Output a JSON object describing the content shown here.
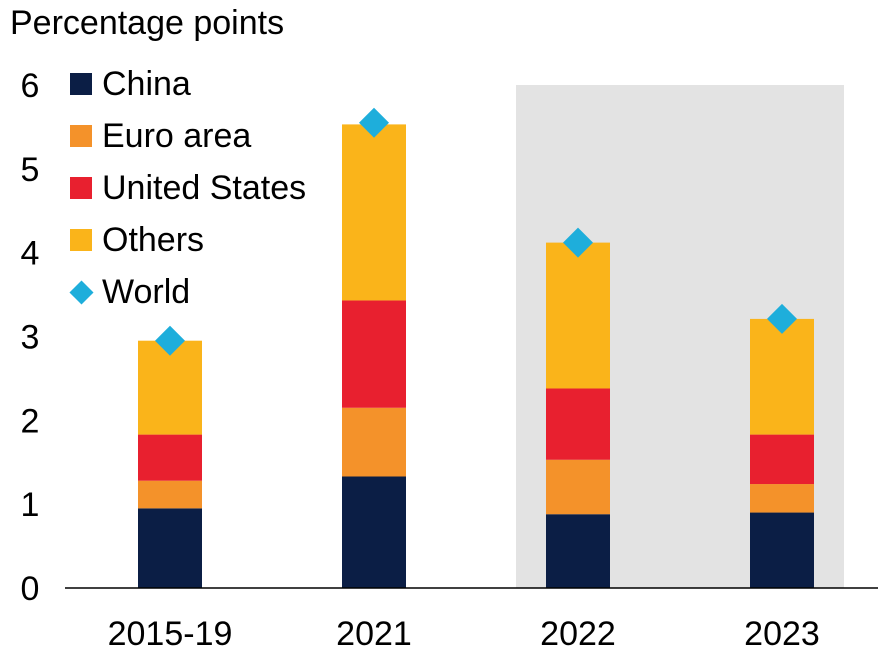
{
  "chart_data": {
    "type": "bar",
    "stacked": true,
    "ylabel": "Percentage points",
    "ylim": [
      0,
      6
    ],
    "yticks": [
      0,
      1,
      2,
      3,
      4,
      5,
      6
    ],
    "categories": [
      "2015-19",
      "2021",
      "2022",
      "2023"
    ],
    "shaded_categories": [
      "2022",
      "2023"
    ],
    "series": [
      {
        "name": "China",
        "color": "#0b1e45",
        "values": [
          0.95,
          1.33,
          0.88,
          0.9
        ]
      },
      {
        "name": "Euro area",
        "color": "#f4922a",
        "values": [
          0.33,
          0.82,
          0.65,
          0.34
        ]
      },
      {
        "name": "United States",
        "color": "#e8202f",
        "values": [
          0.55,
          1.28,
          0.85,
          0.59
        ]
      },
      {
        "name": "Others",
        "color": "#fab41a",
        "values": [
          1.12,
          2.1,
          1.74,
          1.38
        ]
      }
    ],
    "markers": {
      "name": "World",
      "color": "#1eaedb",
      "values": [
        2.95,
        5.55,
        4.12,
        3.21
      ]
    },
    "legend_position": "top-left",
    "grid": false,
    "shade_color": "#e3e3e3"
  }
}
